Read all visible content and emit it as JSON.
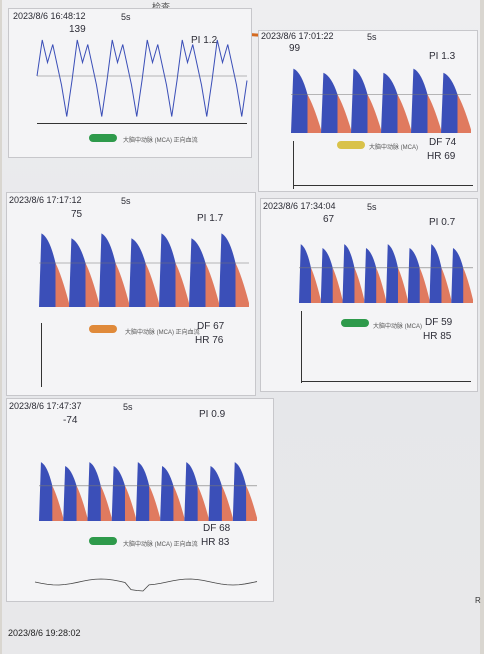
{
  "header": {
    "tag": "检查"
  },
  "colors": {
    "accent_line": "#d46a21",
    "wave_blue": "#3b4fb8",
    "wave_red": "#e07a5f",
    "legend_green": "#2e9a4b",
    "legend_yellow": "#d9c24a",
    "legend_orange": "#e08a3a"
  },
  "panels": [
    {
      "timestamp": "2023/8/6 16:48:12",
      "speed": "5s",
      "value": "139",
      "pi": "PI 1.2",
      "legend": "大脑中动脉 (MCA) 正向血流",
      "df": "",
      "hr": "",
      "wave_style": "line"
    },
    {
      "timestamp": "2023/8/6 17:01:22",
      "speed": "5s",
      "value": "99",
      "pi": "PI 1.3",
      "legend": "大脑中动脉 (MCA)",
      "df": "DF 74",
      "hr": "HR 69",
      "wave_style": "fill"
    },
    {
      "timestamp": "2023/8/6 17:17:12",
      "speed": "5s",
      "value": "75",
      "pi": "PI 1.7",
      "legend": "大脑中动脉 (MCA) 正向血流",
      "df": "DF 67",
      "hr": "HR 76",
      "wave_style": "fill"
    },
    {
      "timestamp": "2023/8/6 17:34:04",
      "speed": "5s",
      "value": "67",
      "pi": "PI 0.7",
      "legend": "大脑中动脉 (MCA)",
      "df": "DF 59",
      "hr": "HR 85",
      "wave_style": "fill"
    },
    {
      "timestamp": "2023/8/6 17:47:37",
      "speed": "5s",
      "value": "-74",
      "pi": "PI 0.9",
      "legend": "大脑中动脉 (MCA) 正向血流",
      "df": "DF 68",
      "hr": "HR 83",
      "wave_style": "fill"
    }
  ],
  "footer": {
    "timestamp": "2023/8/6 19:28:02",
    "edge_mark": "R"
  }
}
